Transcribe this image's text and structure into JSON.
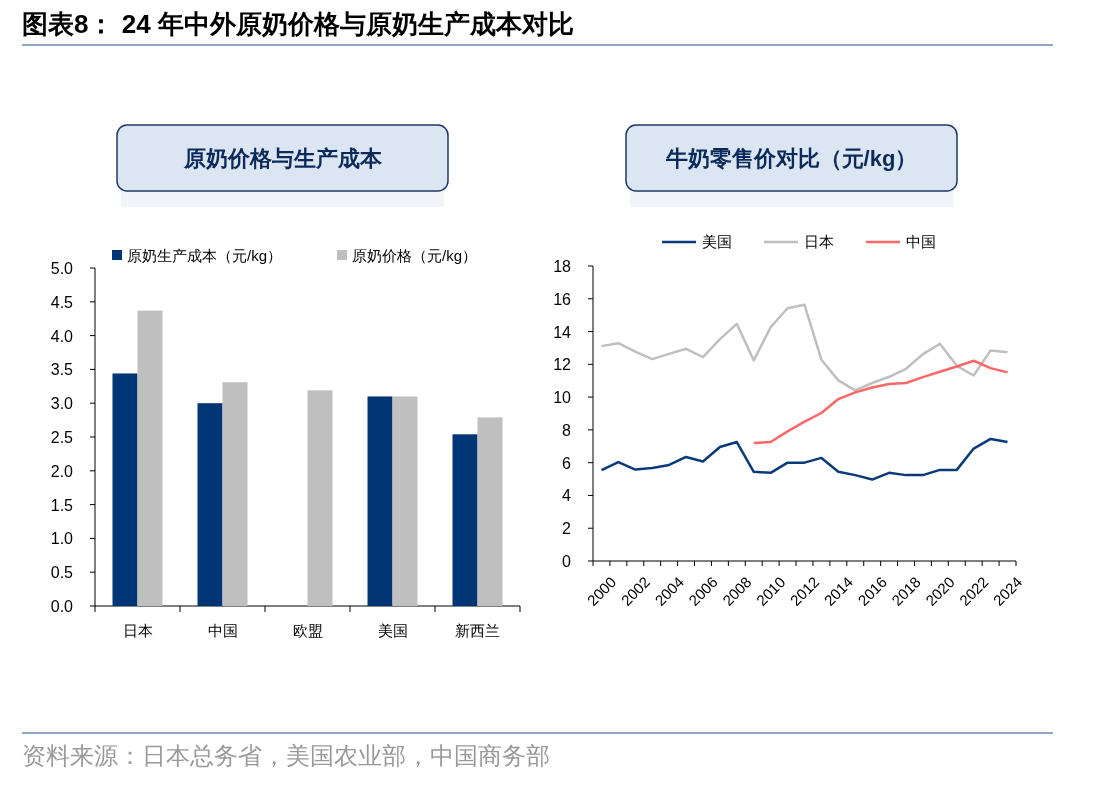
{
  "chart_data": [
    {
      "type": "bar",
      "title": "原奶价格与生产成本",
      "categories": [
        "日本",
        "中国",
        "欧盟",
        "美国",
        "新西兰"
      ],
      "series": [
        {
          "name": "原奶生产成本（元/kg）",
          "color": "#003676",
          "values": [
            3.44,
            3.0,
            null,
            3.1,
            2.54
          ]
        },
        {
          "name": "原奶价格（元/kg）",
          "color": "#bfbfbf",
          "values": [
            4.37,
            3.31,
            3.19,
            3.1,
            2.79
          ]
        }
      ],
      "ylim": [
        0,
        5
      ],
      "yticks": [
        {
          "value": 0,
          "label": "0.0"
        },
        {
          "value": 0.5,
          "label": "0.5"
        },
        {
          "value": 1,
          "label": "1.0"
        },
        {
          "value": 1.5,
          "label": "1.5"
        },
        {
          "value": 2,
          "label": "2.0"
        },
        {
          "value": 2.5,
          "label": "2.5"
        },
        {
          "value": 3,
          "label": "3.0"
        },
        {
          "value": 3.5,
          "label": "3.5"
        },
        {
          "value": 4,
          "label": "4.0"
        },
        {
          "value": 4.5,
          "label": "4.5"
        },
        {
          "value": 5,
          "label": "5.0"
        }
      ],
      "legend": "top",
      "annotations": [
        "图表8：  24 年中外原奶价格与原奶生产成本对比"
      ]
    },
    {
      "type": "line",
      "title": "牛奶零售价对比（元/kg）",
      "categories": [
        "2000",
        null,
        "2002",
        null,
        "2004",
        null,
        "2006",
        null,
        "2008",
        null,
        "2010",
        null,
        "2012",
        null,
        "2014",
        null,
        "2016",
        null,
        "2018",
        null,
        "2020",
        null,
        "2022",
        null,
        "2024"
      ],
      "series": [
        {
          "name": "美国",
          "color": "#0b3a7a",
          "values": [
            5.54,
            6.03,
            5.58,
            5.68,
            5.86,
            6.35,
            6.07,
            6.96,
            7.26,
            5.44,
            5.38,
            6.0,
            6.0,
            6.29,
            5.44,
            5.24,
            4.97,
            5.38,
            5.24,
            5.24,
            5.56,
            5.56,
            6.86,
            7.45,
            7.26
          ]
        },
        {
          "name": "日本",
          "color": "#bfbfbf",
          "values": [
            13.11,
            13.29,
            12.78,
            12.32,
            12.64,
            12.95,
            12.44,
            13.54,
            14.47,
            12.24,
            14.27,
            15.42,
            15.63,
            12.28,
            11.02,
            10.41,
            10.86,
            11.24,
            11.73,
            12.62,
            13.25,
            11.91,
            11.32,
            12.85,
            12.74
          ]
        },
        {
          "name": "中国",
          "color": "#ff6666",
          "values": [
            null,
            null,
            null,
            null,
            null,
            null,
            null,
            null,
            null,
            7.2,
            7.26,
            7.91,
            8.5,
            9.03,
            9.88,
            10.29,
            10.59,
            10.8,
            10.86,
            11.22,
            11.55,
            11.87,
            12.22,
            11.77,
            11.51
          ]
        }
      ],
      "ylim": [
        0,
        18
      ],
      "yticks": [
        0,
        2,
        4,
        6,
        8,
        10,
        12,
        14,
        16,
        18
      ],
      "legend": "top",
      "annotations": [
        "资料来源：日本总务省，美国农业部，中国商务部"
      ]
    }
  ]
}
